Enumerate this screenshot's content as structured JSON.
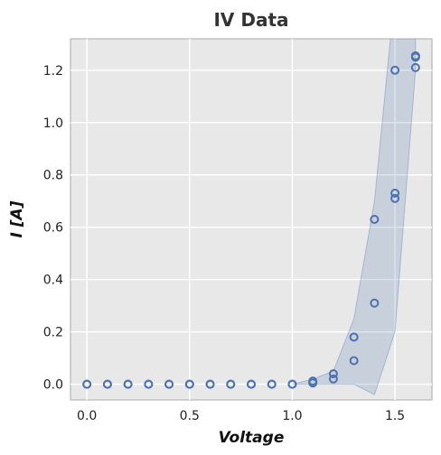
{
  "chart_data": {
    "type": "scatter",
    "title": "IV Data",
    "xlabel": "Voltage",
    "ylabel": "I [A]",
    "xlim": [
      -0.08,
      1.68
    ],
    "ylim": [
      -0.06,
      1.32
    ],
    "xticks": [
      0.0,
      0.5,
      1.0,
      1.5
    ],
    "xtick_labels": [
      "0.0",
      "0.5",
      "1.0",
      "1.5"
    ],
    "yticks": [
      0.0,
      0.2,
      0.4,
      0.6,
      0.8,
      1.0,
      1.2
    ],
    "ytick_labels": [
      "0.0",
      "0.2",
      "0.4",
      "0.6",
      "0.8",
      "1.0",
      "1.2"
    ],
    "grid": true,
    "series": [
      {
        "marker": "open-circle",
        "color": "#4c72b0",
        "points": [
          [
            0.0,
            0.0
          ],
          [
            0.0,
            0.0
          ],
          [
            0.1,
            0.0
          ],
          [
            0.1,
            0.0
          ],
          [
            0.2,
            0.0
          ],
          [
            0.2,
            0.0
          ],
          [
            0.3,
            0.0
          ],
          [
            0.3,
            0.0
          ],
          [
            0.4,
            0.0
          ],
          [
            0.4,
            0.0
          ],
          [
            0.5,
            0.0
          ],
          [
            0.5,
            0.0
          ],
          [
            0.6,
            0.0
          ],
          [
            0.6,
            0.0
          ],
          [
            0.7,
            0.0
          ],
          [
            0.7,
            0.0
          ],
          [
            0.8,
            0.0
          ],
          [
            0.8,
            0.0
          ],
          [
            0.9,
            0.0
          ],
          [
            0.9,
            0.0
          ],
          [
            1.0,
            0.0
          ],
          [
            1.0,
            0.0
          ],
          [
            1.1,
            0.005
          ],
          [
            1.1,
            0.012
          ],
          [
            1.2,
            0.02
          ],
          [
            1.2,
            0.04
          ],
          [
            1.3,
            0.09
          ],
          [
            1.3,
            0.18
          ],
          [
            1.4,
            0.31
          ],
          [
            1.4,
            0.63
          ],
          [
            1.5,
            0.71
          ],
          [
            1.5,
            0.73
          ],
          [
            1.5,
            1.2
          ],
          [
            1.6,
            1.21
          ],
          [
            1.6,
            1.25
          ],
          [
            1.6,
            1.255
          ]
        ]
      }
    ],
    "band": {
      "color": "#4c72b0",
      "opacity": 0.2,
      "x": [
        1.0,
        1.1,
        1.2,
        1.3,
        1.4,
        1.5,
        1.6
      ],
      "lower": [
        0.0,
        0.0,
        0.0,
        0.0,
        -0.04,
        0.2,
        1.2
      ],
      "upper": [
        0.0,
        0.02,
        0.05,
        0.25,
        0.7,
        1.5,
        1.6
      ]
    }
  }
}
